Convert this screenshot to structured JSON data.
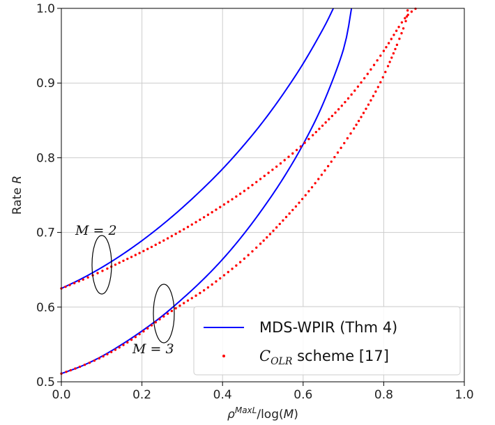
{
  "chart_data": {
    "type": "line",
    "xlabel": "ρ^{MaxL}/log(M)",
    "ylabel": "Rate  R",
    "xlim": [
      0.0,
      1.0
    ],
    "ylim": [
      0.5,
      1.0
    ],
    "xticks": [
      "0.0",
      "0.2",
      "0.4",
      "0.6",
      "0.8",
      "1.0"
    ],
    "yticks": [
      "0.5",
      "0.6",
      "0.7",
      "0.8",
      "0.9",
      "1.0"
    ],
    "grid": true,
    "legend_position": "bottom-right",
    "legend": [
      {
        "label": "MDS-WPIR (Thm 4)",
        "style": "solid",
        "color": "#0000ff"
      },
      {
        "label_main": "C",
        "label_sub": "OLR",
        "label_rest": " scheme [17]",
        "style": "dotted",
        "color": "#ff0000"
      }
    ],
    "annotations": [
      {
        "text": "M = 2",
        "ellipse_at": [
          0.1,
          0.655
        ]
      },
      {
        "text": "M = 3",
        "ellipse_at": [
          0.255,
          0.59
        ]
      }
    ],
    "series": [
      {
        "group": "MDS-WPIR (Thm 4)",
        "M": 2,
        "style": "solid",
        "color": "#0000ff",
        "x": [
          0.0,
          0.05,
          0.1,
          0.15,
          0.2,
          0.25,
          0.3,
          0.35,
          0.4,
          0.45,
          0.5,
          0.55,
          0.6,
          0.65,
          0.675
        ],
        "y": [
          0.625,
          0.638,
          0.653,
          0.67,
          0.689,
          0.71,
          0.733,
          0.758,
          0.785,
          0.815,
          0.848,
          0.885,
          0.926,
          0.973,
          1.0
        ]
      },
      {
        "group": "MDS-WPIR (Thm 4)",
        "M": 3,
        "style": "solid",
        "color": "#0000ff",
        "x": [
          0.0,
          0.05,
          0.1,
          0.15,
          0.2,
          0.25,
          0.3,
          0.35,
          0.4,
          0.45,
          0.5,
          0.55,
          0.6,
          0.65,
          0.7,
          0.72
        ],
        "y": [
          0.511,
          0.521,
          0.534,
          0.55,
          0.568,
          0.588,
          0.611,
          0.636,
          0.664,
          0.696,
          0.732,
          0.772,
          0.818,
          0.873,
          0.945,
          1.0
        ]
      },
      {
        "group": "C_OLR scheme [17]",
        "M": 2,
        "style": "dotted",
        "color": "#ff0000",
        "x": [
          0.0,
          0.05,
          0.1,
          0.15,
          0.2,
          0.25,
          0.3,
          0.35,
          0.4,
          0.45,
          0.5,
          0.55,
          0.6,
          0.65,
          0.7,
          0.75,
          0.8,
          0.85,
          0.88
        ],
        "y": [
          0.625,
          0.636,
          0.648,
          0.661,
          0.674,
          0.688,
          0.703,
          0.719,
          0.736,
          0.754,
          0.774,
          0.795,
          0.818,
          0.844,
          0.872,
          0.905,
          0.943,
          0.985,
          1.0
        ]
      },
      {
        "group": "C_OLR scheme [17]",
        "M": 3,
        "style": "dotted",
        "color": "#ff0000",
        "x": [
          0.0,
          0.05,
          0.1,
          0.15,
          0.2,
          0.25,
          0.3,
          0.35,
          0.4,
          0.45,
          0.5,
          0.55,
          0.6,
          0.65,
          0.7,
          0.75,
          0.8,
          0.85,
          0.86
        ],
        "y": [
          0.511,
          0.521,
          0.533,
          0.548,
          0.566,
          0.586,
          0.604,
          0.621,
          0.641,
          0.663,
          0.688,
          0.716,
          0.746,
          0.78,
          0.818,
          0.86,
          0.91,
          0.975,
          1.0
        ]
      }
    ]
  }
}
